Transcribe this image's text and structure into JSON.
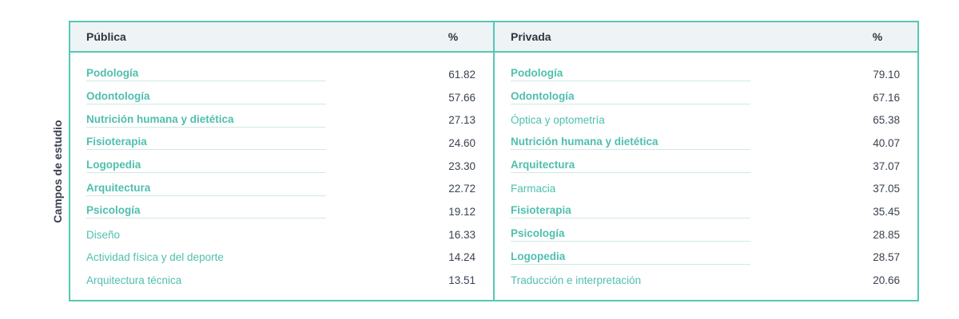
{
  "side_label": "Campos de estudio",
  "tables": [
    {
      "header": [
        "Pública",
        "%"
      ],
      "rows": [
        {
          "name": "Podología",
          "value": "61.82",
          "highlight": true
        },
        {
          "name": "Odontología",
          "value": "57.66",
          "highlight": true
        },
        {
          "name": "Nutrición humana y dietética",
          "value": "27.13",
          "highlight": true
        },
        {
          "name": "Fisioterapia",
          "value": "24.60",
          "highlight": true
        },
        {
          "name": "Logopedia",
          "value": "23.30",
          "highlight": true
        },
        {
          "name": "Arquitectura",
          "value": "22.72",
          "highlight": true
        },
        {
          "name": "Psicología",
          "value": "19.12",
          "highlight": true
        },
        {
          "name": "Diseño",
          "value": "16.33",
          "highlight": false
        },
        {
          "name": "Actividad física y del deporte",
          "value": "14.24",
          "highlight": false
        },
        {
          "name": "Arquitectura técnica",
          "value": "13.51",
          "highlight": false
        }
      ]
    },
    {
      "header": [
        "Privada",
        "%"
      ],
      "rows": [
        {
          "name": "Podología",
          "value": "79.10",
          "highlight": true
        },
        {
          "name": "Odontología",
          "value": "67.16",
          "highlight": true
        },
        {
          "name": "Óptica y optometría",
          "value": "65.38",
          "highlight": false
        },
        {
          "name": "Nutrición humana y dietética",
          "value": "40.07",
          "highlight": true
        },
        {
          "name": "Arquitectura",
          "value": "37.07",
          "highlight": true
        },
        {
          "name": "Farmacia",
          "value": "37.05",
          "highlight": false
        },
        {
          "name": "Fisioterapia",
          "value": "35.45",
          "highlight": true
        },
        {
          "name": "Psicología",
          "value": "28.85",
          "highlight": true
        },
        {
          "name": "Logopedia",
          "value": "28.57",
          "highlight": true
        },
        {
          "name": "Traducción e interpretación",
          "value": "20.66",
          "highlight": false
        }
      ]
    }
  ]
}
